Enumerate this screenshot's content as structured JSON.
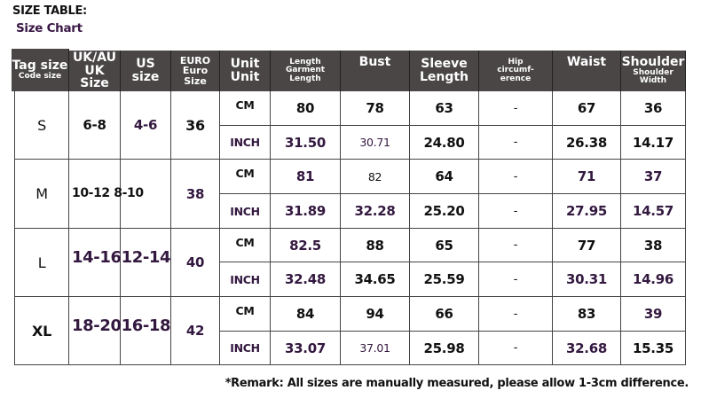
{
  "title": "SIZE TABLE:",
  "subtitle": "Size Chart",
  "header": {
    "tag": [
      "Tag size",
      "Code size"
    ],
    "uk": [
      "UK/AU",
      "UK Size"
    ],
    "us": [
      "US",
      "size"
    ],
    "euro": [
      "EURO",
      "Euro Size"
    ],
    "unit": [
      "Unit",
      "Unit"
    ],
    "length": [
      "Length",
      "Garment",
      "Length"
    ],
    "bust": "Bust",
    "sleeve": [
      "Sleeve",
      "Length"
    ],
    "hip": [
      "Hip",
      "circumf-",
      "erence"
    ],
    "waist": "Waist",
    "shoulder": [
      "Shoulder",
      "Shoulder",
      "Width"
    ]
  },
  "units": [
    "CM",
    "INCH"
  ],
  "rows": [
    {
      "tag": "S",
      "uk": "6-8",
      "us": "4-6",
      "euro": "36",
      "cm": [
        "80",
        "78",
        "63",
        "-",
        "67",
        "36"
      ],
      "inch": [
        "31.50",
        "30.71",
        "24.80",
        "-",
        "26.38",
        "14.17"
      ]
    },
    {
      "tag": "M",
      "uk": "10-12 8-10",
      "us": "",
      "euro": "38",
      "cm": [
        "81",
        "82",
        "64",
        "-",
        "71",
        "37"
      ],
      "inch": [
        "31.89",
        "32.28",
        "25.20",
        "-",
        "27.95",
        "14.57"
      ]
    },
    {
      "tag": "L",
      "uk": "14-1612-14",
      "us": "",
      "euro": "40",
      "cm": [
        "82.5",
        "88",
        "65",
        "-",
        "77",
        "38"
      ],
      "inch": [
        "32.48",
        "34.65",
        "25.59",
        "-",
        "30.31",
        "14.96"
      ]
    },
    {
      "tag": "XL",
      "uk": "18-2016-18",
      "us": "",
      "euro": "42",
      "cm": [
        "84",
        "94",
        "66",
        "-",
        "83",
        "39"
      ],
      "inch": [
        "33.07",
        "37.01",
        "25.98",
        "-",
        "32.68",
        "15.35"
      ]
    }
  ],
  "text_color_accent": "#33183f",
  "header_bg": "#4a4646",
  "remark": "*Remark: All sizes are manually measured, please allow 1-3cm difference."
}
